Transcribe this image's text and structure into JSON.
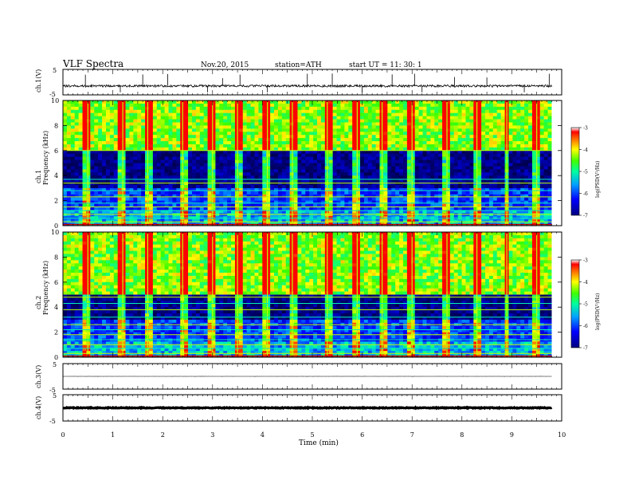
{
  "header": {
    "title": "VLF  Spectra",
    "date": "Nov.20, 2015",
    "station": "station=ATH",
    "start": "start  UT  =    11: 30: 1"
  },
  "chart_data": [
    {
      "type": "line",
      "panel": "ch1",
      "ylabel": "ch.1(V)",
      "ylim": [
        -5,
        5
      ],
      "yticks": [
        "5",
        "-5"
      ],
      "baseline_value": -1.5,
      "noise_amplitude": 0.45,
      "spike_times_min": [
        0.45,
        1.15,
        1.6,
        2.1,
        2.9,
        3.2,
        3.55,
        4.1,
        4.9,
        5.4,
        6.0,
        6.6,
        7.05,
        7.2,
        7.85,
        8.5,
        9.25,
        9.75
      ],
      "grid": false
    },
    {
      "type": "heatmap",
      "panel": "ch1-spectrogram",
      "ylabel": "ch.1\nFrequency  (kHz)",
      "ylim": [
        0,
        10
      ],
      "yticks": [
        "0",
        "2",
        "4",
        "6",
        "8",
        "10"
      ],
      "colorbar": {
        "label": "log(PSD(V²/Hz)",
        "range": [
          -7,
          -3
        ],
        "ticks": [
          "-3",
          "-4",
          "-5",
          "-6",
          "-7"
        ]
      },
      "dark_band_khz": [
        3.0,
        6.0
      ],
      "horizontal_lines_khz": [
        0.3,
        0.6,
        0.9,
        1.2,
        1.5,
        1.8,
        2.3,
        2.8,
        3.4,
        3.7,
        6.0
      ],
      "burst_times_min": [
        0.5,
        1.2,
        1.7,
        2.4,
        3.0,
        3.5,
        4.1,
        4.6,
        5.3,
        5.9,
        6.4,
        7.0,
        7.7,
        8.3,
        8.9,
        9.5
      ]
    },
    {
      "type": "heatmap",
      "panel": "ch2-spectrogram",
      "ylabel": "ch.2\nFrequency  (kHz)",
      "ylim": [
        0,
        10
      ],
      "yticks": [
        "0",
        "2",
        "4",
        "6",
        "8",
        "10"
      ],
      "colorbar": {
        "label": "log(PSD(V²/Hz)",
        "range": [
          -7,
          -3
        ],
        "ticks": [
          "-3",
          "-4",
          "-5",
          "-6",
          "-7"
        ]
      },
      "dark_band_khz": [
        3.0,
        5.0
      ],
      "horizontal_lines_khz": [
        0.3,
        0.7,
        1.0,
        1.4,
        1.8,
        2.2,
        2.6,
        3.2,
        3.8,
        4.3,
        4.8
      ],
      "burst_times_min": [
        0.5,
        1.2,
        1.7,
        2.4,
        3.0,
        3.5,
        4.1,
        4.6,
        5.3,
        5.9,
        6.4,
        7.0,
        7.7,
        8.3,
        8.9,
        9.5
      ]
    },
    {
      "type": "line",
      "panel": "ch3",
      "ylabel": "ch.3(V)",
      "ylim": [
        -5,
        5
      ],
      "yticks": [
        "5",
        "-5"
      ],
      "baseline_value": 0,
      "noise_amplitude": 0.02
    },
    {
      "type": "line",
      "panel": "ch4",
      "ylabel": "ch.4(V)",
      "ylim": [
        -5,
        5
      ],
      "yticks": [
        "5",
        "-5"
      ],
      "baseline_value": 0,
      "noise_amplitude": 0.15
    }
  ],
  "x_axis": {
    "xlabel": "Time  (min)",
    "xlim": [
      0,
      10
    ],
    "data_end_min": 9.8,
    "ticks": [
      "0",
      "1",
      "2",
      "3",
      "4",
      "5",
      "6",
      "7",
      "8",
      "9",
      "10"
    ]
  },
  "colors": {
    "axis": "#000000",
    "trace": "#000000",
    "background": "#ffffff"
  }
}
